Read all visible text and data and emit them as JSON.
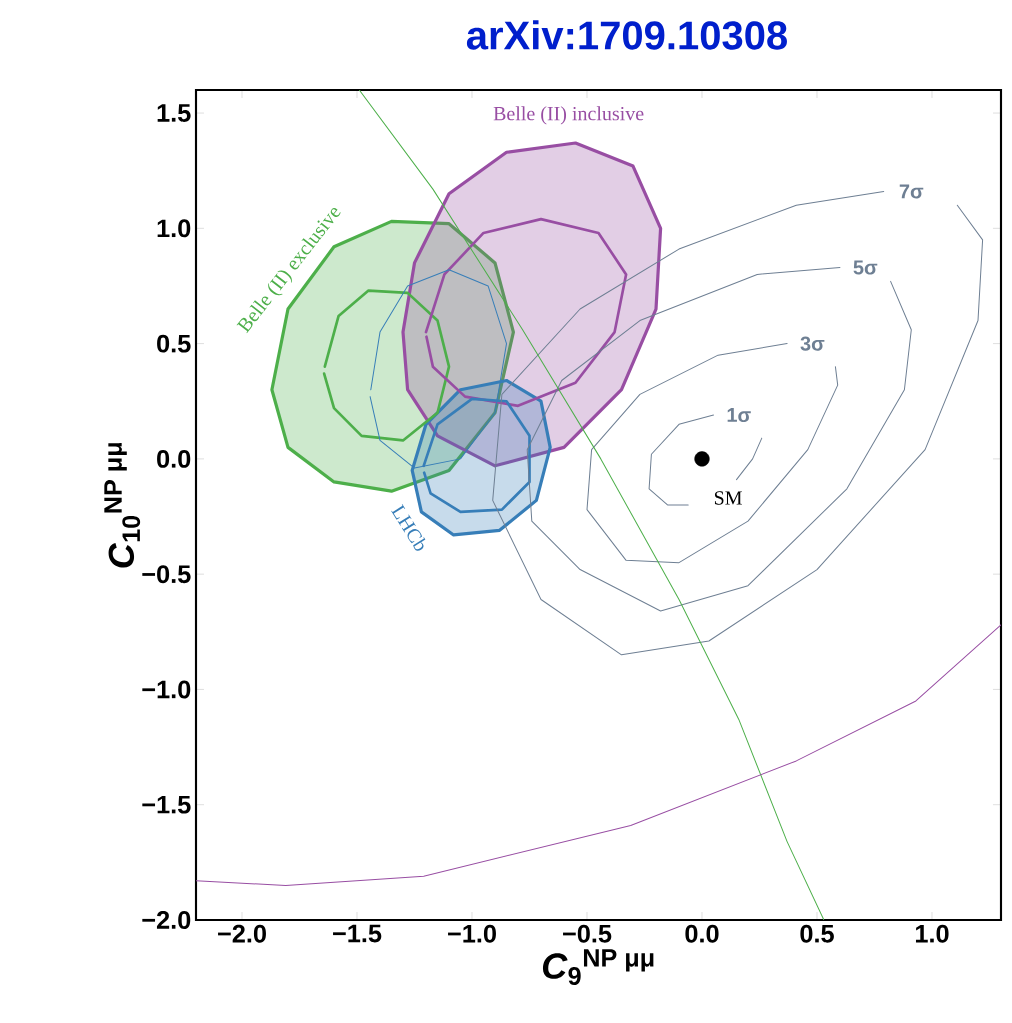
{
  "chart_data": {
    "type": "line",
    "title": "arXiv:1709.10308",
    "xlabel": "*C*$_{9}$$^{NP μμ}$",
    "ylabel": "*C*$_{10}$$^{NP μμ}$",
    "xlim": [
      -2.2,
      1.3
    ],
    "ylim": [
      -2.0,
      1.6
    ],
    "xticks": [
      {
        "value": -2,
        "label": "−2.0"
      },
      {
        "value": -1.5,
        "label": "−1.5"
      },
      {
        "value": -1,
        "label": "−1.0"
      },
      {
        "value": -0.5,
        "label": "−0.5"
      },
      {
        "value": 0,
        "label": "0.0"
      },
      {
        "value": 0.5,
        "label": "0.5"
      },
      {
        "value": 1,
        "label": "1.0"
      }
    ],
    "yticks": [
      {
        "value": -2,
        "label": "−2.0"
      },
      {
        "value": -1.5,
        "label": "−1.5"
      },
      {
        "value": -1,
        "label": "−1.0"
      },
      {
        "value": -0.5,
        "label": "−0.5"
      },
      {
        "value": 0,
        "label": "0.0"
      },
      {
        "value": 0.5,
        "label": "0.5"
      },
      {
        "value": 1,
        "label": "1.0"
      },
      {
        "value": 1.5,
        "label": "1.5"
      }
    ],
    "marker": "none",
    "series": [
      {
        "name": "Belle (II) exclusive",
        "type": "area",
        "color": "#4daf4a",
        "x": [
          -1.87,
          -1.8,
          -1.6,
          -1.35,
          -1.1,
          -0.9,
          -0.82,
          -0.9,
          -1.1,
          -1.35,
          -1.6,
          -1.8,
          -1.87
        ],
        "values": [
          0.3,
          0.65,
          0.92,
          1.03,
          1.02,
          0.85,
          0.55,
          0.2,
          -0.05,
          -0.14,
          -0.1,
          0.05,
          0.3
        ]
      },
      {
        "name": "Belle (II) inclusive",
        "type": "area",
        "color": "#984ea3",
        "x": [
          -1.3,
          -1.25,
          -1.1,
          -0.85,
          -0.55,
          -0.3,
          -0.18,
          -0.2,
          -0.35,
          -0.6,
          -0.9,
          -1.15,
          -1.28,
          -1.3
        ],
        "values": [
          0.55,
          0.85,
          1.15,
          1.33,
          1.37,
          1.27,
          1.0,
          0.65,
          0.3,
          0.05,
          -0.03,
          0.1,
          0.3,
          0.55
        ]
      },
      {
        "name": "LHCb",
        "type": "area",
        "color": "#377eb8",
        "x": [
          -1.26,
          -1.2,
          -1.05,
          -0.85,
          -0.7,
          -0.66,
          -0.72,
          -0.88,
          -1.08,
          -1.22,
          -1.26
        ],
        "values": [
          -0.05,
          0.15,
          0.3,
          0.34,
          0.25,
          0.05,
          -0.18,
          -0.31,
          -0.33,
          -0.23,
          -0.05
        ]
      },
      {
        "color": "#4daf4a",
        "x": [
          -1.64,
          -1.58,
          -1.45,
          -1.28,
          -1.15,
          -1.1,
          -1.15,
          -1.3,
          -1.48,
          -1.6,
          -1.643
        ],
        "values": [
          0.4,
          0.62,
          0.73,
          0.72,
          0.6,
          0.4,
          0.2,
          0.08,
          0.1,
          0.22,
          0.37
        ]
      },
      {
        "color": "#984ea3",
        "x": [
          -1.2,
          -1.12,
          -0.95,
          -0.7,
          -0.45,
          -0.33,
          -0.38,
          -0.55,
          -0.8,
          -1.03,
          -1.17,
          -1.198
        ],
        "values": [
          0.55,
          0.8,
          0.98,
          1.04,
          0.98,
          0.8,
          0.55,
          0.33,
          0.23,
          0.27,
          0.4,
          0.53
        ]
      },
      {
        "color": "#377eb8",
        "x": [
          -1.21,
          -1.15,
          -1.0,
          -0.85,
          -0.75,
          -0.75,
          -0.87,
          -1.05,
          -1.18,
          -1.208
        ],
        "values": [
          -0.03,
          0.15,
          0.26,
          0.25,
          0.1,
          -0.1,
          -0.22,
          -0.23,
          -0.15,
          -0.06
        ]
      },
      {
        "color": "#377eb8",
        "x": [
          -1.44,
          -1.4,
          -1.28,
          -1.1,
          -0.93,
          -0.85,
          -0.9,
          -1.05,
          -1.25,
          -1.4,
          -1.443
        ],
        "values": [
          0.3,
          0.55,
          0.75,
          0.82,
          0.75,
          0.5,
          0.2,
          0.0,
          -0.04,
          0.08,
          0.27
        ]
      },
      {
        "color": "#6e7f93",
        "x": [
          0.05,
          -0.1,
          -0.22,
          -0.23,
          -0.15,
          -0.06,
          null,
          0.15,
          0.22,
          0.26
        ],
        "values": [
          0.19,
          0.15,
          0.02,
          -0.13,
          -0.2,
          -0.2,
          null,
          -0.09,
          0.0,
          0.09
        ]
      },
      {
        "color": "#6e7f93",
        "x": [
          0.37,
          0.07,
          -0.27,
          -0.48,
          -0.5,
          -0.33,
          -0.1,
          0.2,
          0.46,
          0.59,
          0.58
        ],
        "values": [
          0.5,
          0.45,
          0.28,
          0.04,
          -0.22,
          -0.44,
          -0.45,
          -0.27,
          0.04,
          0.32,
          0.4
        ]
      },
      {
        "color": "#6e7f93",
        "x": [
          0.6,
          0.24,
          -0.27,
          -0.61,
          -0.76,
          -0.74,
          -0.53,
          -0.18,
          0.2,
          0.63,
          0.88,
          0.91,
          0.82
        ],
        "values": [
          0.83,
          0.8,
          0.6,
          0.34,
          0.04,
          -0.27,
          -0.48,
          -0.66,
          -0.55,
          -0.13,
          0.3,
          0.56,
          0.77
        ]
      },
      {
        "color": "#6e7f93",
        "x": [
          0.79,
          0.41,
          -0.1,
          -0.53,
          -0.87,
          -0.91,
          -0.7,
          -0.35,
          0.03,
          0.5,
          0.97,
          1.2,
          1.22,
          1.11
        ],
        "values": [
          1.16,
          1.1,
          0.91,
          0.65,
          0.28,
          -0.18,
          -0.61,
          -0.85,
          -0.79,
          -0.48,
          0.04,
          0.6,
          0.95,
          1.1
        ]
      },
      {
        "color": "#4daf4a",
        "x": [
          -1.49,
          -1.17,
          -0.78,
          -0.44,
          -0.1,
          0.16,
          0.37,
          0.53
        ],
        "values": [
          1.6,
          1.17,
          0.56,
          0.0,
          -0.61,
          -1.13,
          -1.66,
          -2.0
        ]
      },
      {
        "color": "#984ea3",
        "x": [
          -2.2,
          -1.81,
          -1.21,
          -0.31,
          0.41,
          0.93,
          1.3
        ],
        "values": [
          -1.83,
          -1.85,
          -1.81,
          -1.59,
          -1.31,
          -1.05,
          -0.72
        ]
      },
      {
        "name": "SM",
        "type": "scatter",
        "marker": "circle",
        "color": "#000000",
        "x": [
          0
        ],
        "values": [
          0
        ]
      }
    ],
    "annotations": [
      "1σ",
      "3σ",
      "5σ",
      "7σ"
    ]
  }
}
